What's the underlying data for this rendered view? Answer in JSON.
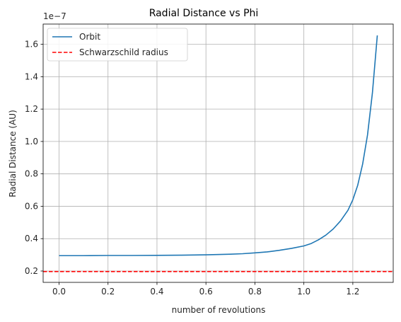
{
  "chart_data": {
    "type": "line",
    "title": "Radial Distance vs Phi",
    "xlabel": "number of revolutions",
    "ylabel": "Radial Distance (AU)",
    "y_offset_label": "1e−7",
    "xlim": [
      -0.065,
      1.365
    ],
    "ylim": [
      0.13,
      1.725
    ],
    "x_ticks": [
      0.0,
      0.2,
      0.4,
      0.6,
      0.8,
      1.0,
      1.2
    ],
    "x_tick_labels": [
      "0.0",
      "0.2",
      "0.4",
      "0.6",
      "0.8",
      "1.0",
      "1.2"
    ],
    "y_ticks": [
      0.2,
      0.4,
      0.6,
      0.8,
      1.0,
      1.2,
      1.4,
      1.6
    ],
    "y_tick_labels": [
      "0.2",
      "0.4",
      "0.6",
      "0.8",
      "1.0",
      "1.2",
      "1.4",
      "1.6"
    ],
    "grid": true,
    "legend_position": "top-left",
    "series": [
      {
        "name": "Orbit",
        "style": "solid",
        "color": "#1f77b4",
        "x": [
          0.0,
          0.1,
          0.2,
          0.3,
          0.4,
          0.5,
          0.6,
          0.7,
          0.75,
          0.8,
          0.85,
          0.9,
          0.95,
          1.0,
          1.03,
          1.06,
          1.09,
          1.12,
          1.15,
          1.18,
          1.2,
          1.22,
          1.24,
          1.26,
          1.28,
          1.3
        ],
        "y": [
          0.295,
          0.295,
          0.296,
          0.296,
          0.297,
          0.298,
          0.3,
          0.304,
          0.307,
          0.312,
          0.318,
          0.328,
          0.34,
          0.355,
          0.37,
          0.393,
          0.422,
          0.46,
          0.51,
          0.575,
          0.64,
          0.73,
          0.86,
          1.04,
          1.3,
          1.655
        ]
      },
      {
        "name": "Schwarzschild radius",
        "style": "dashed",
        "color": "#ff0000",
        "y_const": 0.197
      }
    ]
  }
}
